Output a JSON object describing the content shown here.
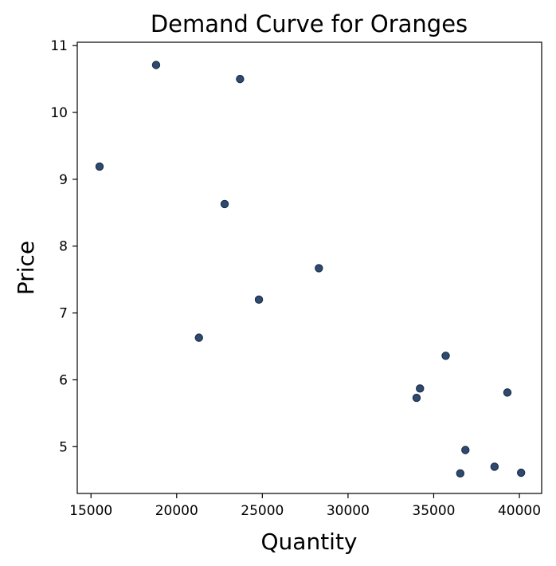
{
  "chart_data": {
    "type": "scatter",
    "title": "Demand Curve for Oranges",
    "xlabel": "Quantity",
    "ylabel": "Price",
    "xlim": [
      14200,
      41300
    ],
    "ylim": [
      4.3,
      11.05
    ],
    "xticks": [
      15000,
      20000,
      25000,
      30000,
      35000,
      40000
    ],
    "yticks": [
      5,
      6,
      7,
      8,
      9,
      10,
      11
    ],
    "grid": false,
    "marker_color": "#2e4a70",
    "marker_edge_color": "#1d2f48",
    "points": [
      {
        "x": 15500,
        "y": 9.19
      },
      {
        "x": 18800,
        "y": 10.71
      },
      {
        "x": 21300,
        "y": 6.63
      },
      {
        "x": 22800,
        "y": 8.63
      },
      {
        "x": 23700,
        "y": 10.5
      },
      {
        "x": 24800,
        "y": 7.2
      },
      {
        "x": 28300,
        "y": 7.67
      },
      {
        "x": 34000,
        "y": 5.73
      },
      {
        "x": 34200,
        "y": 5.87
      },
      {
        "x": 35700,
        "y": 6.36
      },
      {
        "x": 36550,
        "y": 4.6
      },
      {
        "x": 36850,
        "y": 4.95
      },
      {
        "x": 38550,
        "y": 4.7
      },
      {
        "x": 39300,
        "y": 5.81
      },
      {
        "x": 40100,
        "y": 4.61
      }
    ]
  }
}
